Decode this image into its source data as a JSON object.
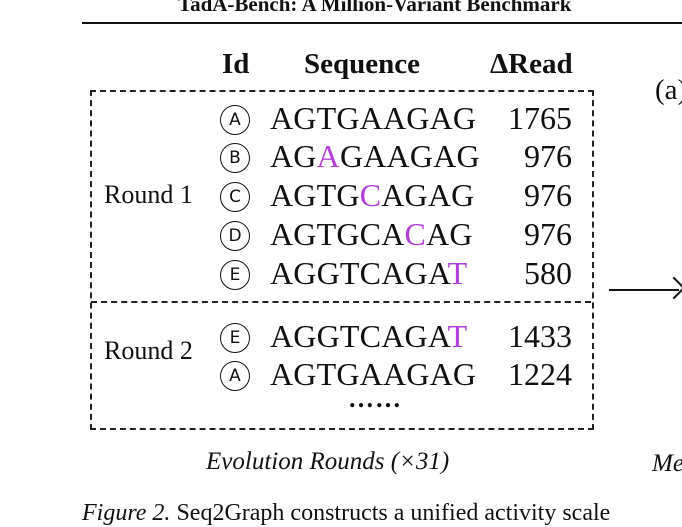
{
  "header": {
    "title": "TadA-Bench: A Million-Variant Benchmark"
  },
  "table": {
    "col_id": "Id",
    "col_sequence": "Sequence",
    "col_read": "ΔRead",
    "rounds": [
      {
        "label": "Round 1",
        "rows": [
          {
            "id": "A",
            "seq_parts": [
              "AGTGAAGAG"
            ],
            "mutated": [
              false
            ],
            "read": "1765"
          },
          {
            "id": "B",
            "seq_parts": [
              "AG",
              "A",
              "GAAGAG"
            ],
            "mutated": [
              false,
              true,
              false
            ],
            "read": "976"
          },
          {
            "id": "C",
            "seq_parts": [
              "AGTG",
              "C",
              "AGAG"
            ],
            "mutated": [
              false,
              true,
              false
            ],
            "read": "976"
          },
          {
            "id": "D",
            "seq_parts": [
              "AGTGCA",
              "C",
              "AG"
            ],
            "mutated": [
              false,
              true,
              false
            ],
            "read": "976"
          },
          {
            "id": "E",
            "seq_parts": [
              "AGGTCAGA",
              "T"
            ],
            "mutated": [
              false,
              true
            ],
            "read": "580"
          }
        ]
      },
      {
        "label": "Round 2",
        "rows": [
          {
            "id": "E",
            "seq_parts": [
              "AGGTCAGA",
              "T"
            ],
            "mutated": [
              false,
              true
            ],
            "read": "1433"
          },
          {
            "id": "A",
            "seq_parts": [
              "AGTGAAGAG"
            ],
            "mutated": [
              false
            ],
            "read": "1224"
          }
        ],
        "ellipsis": "……"
      }
    ]
  },
  "caption_evolution": "Evolution Rounds (×31)",
  "panel_label_right": "(a)",
  "caption_right_fragment": "Me",
  "figure_caption": {
    "label": "Figure 2.",
    "text": " Seq2Graph constructs a unified activity scale"
  },
  "colors": {
    "mutation": "#b13ed6"
  }
}
